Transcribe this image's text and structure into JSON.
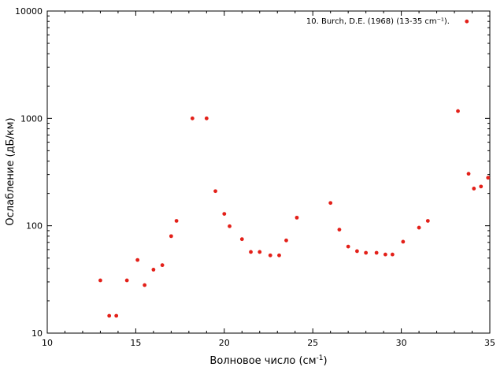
{
  "chart_data": {
    "type": "scatter",
    "title": "",
    "xlabel": "Волновое число (см",
    "xlabel_sup": "-1",
    "xlabel_suffix": ")",
    "ylabel": "Ослабление (дБ/км)",
    "xlim": [
      10,
      35
    ],
    "ylim": [
      10,
      10000
    ],
    "yscale": "log",
    "grid": false,
    "legend_position": "top-right",
    "x_ticks": [
      "10",
      "15",
      "20",
      "25",
      "30",
      "35"
    ],
    "x_tick_values": [
      10,
      15,
      20,
      25,
      30,
      35
    ],
    "y_ticks": [
      "10",
      "100",
      "1000",
      "10000"
    ],
    "y_tick_values": [
      10,
      100,
      1000,
      10000
    ],
    "series": [
      {
        "name": "10. Burch, D.E. (1968) (13-35 cm⁻¹).",
        "color": "#e32019",
        "marker": "filled-circle",
        "x": [
          13.0,
          13.5,
          13.9,
          14.5,
          15.1,
          15.5,
          16.0,
          16.5,
          17.0,
          17.3,
          18.2,
          19.0,
          19.5,
          20.0,
          20.3,
          21.0,
          21.5,
          22.0,
          22.6,
          23.1,
          23.5,
          24.1,
          26.0,
          26.5,
          27.0,
          27.5,
          28.0,
          28.6,
          29.1,
          29.5,
          30.1,
          31.0,
          31.5,
          33.2,
          33.7,
          33.8,
          34.1,
          34.5,
          34.9
        ],
        "y": [
          31,
          14.5,
          14.5,
          31,
          48,
          28,
          39,
          43,
          80,
          111,
          1000,
          1000,
          210,
          129,
          99,
          75,
          57,
          57,
          53,
          53,
          73,
          119,
          163,
          92,
          64,
          58,
          56,
          56,
          54,
          54,
          71,
          96,
          111,
          1170,
          8000,
          305,
          222,
          232,
          280
        ]
      }
    ]
  }
}
